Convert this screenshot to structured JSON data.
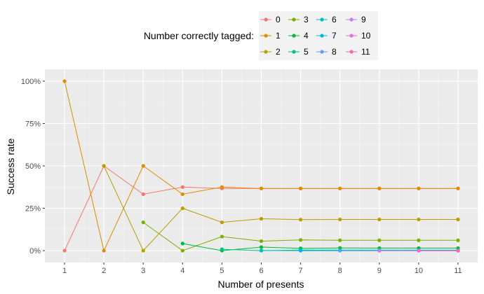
{
  "chart_data": {
    "type": "line",
    "xlabel": "Number of presents",
    "ylabel": "Success rate",
    "x": [
      1,
      2,
      3,
      4,
      5,
      6,
      7,
      8,
      9,
      10,
      11
    ],
    "x_ticks": [
      "1",
      "2",
      "3",
      "4",
      "5",
      "6",
      "7",
      "8",
      "9",
      "10",
      "11"
    ],
    "y_ticks": [
      "0%",
      "25%",
      "50%",
      "75%",
      "100%"
    ],
    "ylim": [
      0,
      1
    ],
    "grid": true,
    "legend_title": "Number correctly tagged:",
    "legend_position": "top",
    "series": [
      {
        "name": "0",
        "color": "#F8766D",
        "points": [
          [
            1,
            0.0
          ],
          [
            2,
            0.5
          ],
          [
            3,
            0.333
          ],
          [
            4,
            0.375
          ],
          [
            5,
            0.367
          ],
          [
            6,
            0.367
          ],
          [
            7,
            0.367
          ],
          [
            8,
            0.367
          ],
          [
            9,
            0.367
          ],
          [
            10,
            0.367
          ],
          [
            11,
            0.367
          ]
        ]
      },
      {
        "name": "1",
        "color": "#DE8C00",
        "points": [
          [
            1,
            1.0
          ],
          [
            2,
            0.0
          ],
          [
            3,
            0.5
          ],
          [
            4,
            0.333
          ],
          [
            5,
            0.375
          ],
          [
            6,
            0.367
          ],
          [
            7,
            0.367
          ],
          [
            8,
            0.367
          ],
          [
            9,
            0.367
          ],
          [
            10,
            0.367
          ],
          [
            11,
            0.367
          ]
        ]
      },
      {
        "name": "2",
        "color": "#B79F00",
        "points": [
          [
            2,
            0.5
          ],
          [
            3,
            0.0
          ],
          [
            4,
            0.25
          ],
          [
            5,
            0.167
          ],
          [
            6,
            0.188
          ],
          [
            7,
            0.183
          ],
          [
            8,
            0.184
          ],
          [
            9,
            0.184
          ],
          [
            10,
            0.184
          ],
          [
            11,
            0.184
          ]
        ]
      },
      {
        "name": "3",
        "color": "#7CAE00",
        "points": [
          [
            3,
            0.167
          ],
          [
            4,
            0.0
          ],
          [
            5,
            0.083
          ],
          [
            6,
            0.056
          ],
          [
            7,
            0.063
          ],
          [
            8,
            0.061
          ],
          [
            9,
            0.061
          ],
          [
            10,
            0.061
          ],
          [
            11,
            0.061
          ]
        ]
      },
      {
        "name": "4",
        "color": "#00BA38",
        "points": [
          [
            4,
            0.042
          ],
          [
            5,
            0.0
          ],
          [
            6,
            0.021
          ],
          [
            7,
            0.014
          ],
          [
            8,
            0.016
          ],
          [
            9,
            0.015
          ],
          [
            10,
            0.015
          ],
          [
            11,
            0.015
          ]
        ]
      },
      {
        "name": "5",
        "color": "#00C08B",
        "points": [
          [
            5,
            0.008
          ],
          [
            6,
            0.0
          ],
          [
            7,
            0.004
          ],
          [
            8,
            0.003
          ],
          [
            9,
            0.003
          ],
          [
            10,
            0.003
          ],
          [
            11,
            0.003
          ]
        ]
      },
      {
        "name": "6",
        "color": "#00BFC4",
        "points": [
          [
            6,
            0.001
          ],
          [
            7,
            0.0
          ],
          [
            8,
            0.001
          ],
          [
            9,
            0.001
          ],
          [
            10,
            0.001
          ],
          [
            11,
            0.001
          ]
        ]
      },
      {
        "name": "7",
        "color": "#00B4F0",
        "points": [
          [
            7,
            0.0
          ],
          [
            8,
            0.0
          ],
          [
            9,
            0.0
          ],
          [
            10,
            0.0
          ],
          [
            11,
            0.0
          ]
        ]
      },
      {
        "name": "8",
        "color": "#619CFF",
        "points": [
          [
            8,
            0.0
          ],
          [
            9,
            0.0
          ],
          [
            10,
            0.0
          ],
          [
            11,
            0.0
          ]
        ]
      },
      {
        "name": "9",
        "color": "#C77CFF",
        "points": [
          [
            9,
            0.0
          ],
          [
            10,
            0.0
          ],
          [
            11,
            0.0
          ]
        ]
      },
      {
        "name": "10",
        "color": "#F564E3",
        "points": [
          [
            10,
            0.0
          ],
          [
            11,
            0.0
          ]
        ]
      },
      {
        "name": "11",
        "color": "#FF64B0",
        "points": [
          [
            11,
            0.0
          ]
        ]
      }
    ]
  }
}
